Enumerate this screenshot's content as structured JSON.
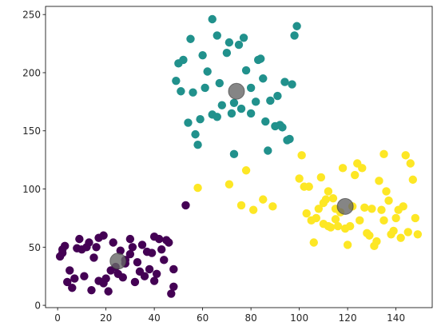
{
  "chart_data": {
    "type": "scatter",
    "title": "",
    "xlabel": "",
    "ylabel": "",
    "xlim": [
      -5,
      155
    ],
    "ylim": [
      -2,
      257
    ],
    "grid": false,
    "x_ticks": [
      0,
      20,
      40,
      60,
      80,
      100,
      120,
      140
    ],
    "y_ticks": [
      0,
      50,
      100,
      150,
      200,
      250
    ],
    "x_tick_labels": [
      "0",
      "20",
      "40",
      "60",
      "80",
      "100",
      "120",
      "140"
    ],
    "y_tick_labels": [
      "0",
      "50",
      "100",
      "150",
      "200",
      "250"
    ],
    "colors": {
      "cluster_purple": "#440154",
      "cluster_teal": "#21918c",
      "cluster_yellow": "#fde725",
      "centroid": "#666666",
      "axis": "#000000"
    },
    "series": [
      {
        "color": "#440154",
        "points": [
          [
            1,
            42
          ],
          [
            2,
            45
          ],
          [
            3,
            51
          ],
          [
            2,
            48
          ],
          [
            4,
            20
          ],
          [
            5,
            30
          ],
          [
            6,
            15
          ],
          [
            7,
            23
          ],
          [
            8,
            49
          ],
          [
            9,
            57
          ],
          [
            10,
            48
          ],
          [
            11,
            25
          ],
          [
            12,
            50
          ],
          [
            13,
            54
          ],
          [
            14,
            13
          ],
          [
            15,
            41
          ],
          [
            16,
            50
          ],
          [
            17,
            58
          ],
          [
            17,
            21
          ],
          [
            19,
            60
          ],
          [
            19,
            19
          ],
          [
            20,
            23
          ],
          [
            21,
            12
          ],
          [
            22,
            30
          ],
          [
            23,
            54
          ],
          [
            24,
            33
          ],
          [
            25,
            27
          ],
          [
            26,
            47
          ],
          [
            27,
            24
          ],
          [
            28,
            36
          ],
          [
            28,
            39
          ],
          [
            30,
            57
          ],
          [
            30,
            44
          ],
          [
            31,
            50
          ],
          [
            32,
            20
          ],
          [
            33,
            37
          ],
          [
            34,
            29
          ],
          [
            35,
            52
          ],
          [
            36,
            25
          ],
          [
            37,
            46
          ],
          [
            38,
            31
          ],
          [
            39,
            45
          ],
          [
            40,
            59
          ],
          [
            40,
            21
          ],
          [
            41,
            27
          ],
          [
            42,
            57
          ],
          [
            43,
            48
          ],
          [
            44,
            39
          ],
          [
            45,
            56
          ],
          [
            46,
            54
          ],
          [
            47,
            10
          ],
          [
            48,
            31
          ],
          [
            48,
            16
          ],
          [
            53,
            86
          ]
        ]
      },
      {
        "color": "#21918c",
        "points": [
          [
            49,
            193
          ],
          [
            50,
            208
          ],
          [
            51,
            184
          ],
          [
            52,
            211
          ],
          [
            54,
            157
          ],
          [
            55,
            229
          ],
          [
            56,
            183
          ],
          [
            57,
            147
          ],
          [
            58,
            138
          ],
          [
            59,
            160
          ],
          [
            60,
            215
          ],
          [
            61,
            187
          ],
          [
            62,
            201
          ],
          [
            64,
            246
          ],
          [
            64,
            164
          ],
          [
            66,
            232
          ],
          [
            66,
            162
          ],
          [
            67,
            191
          ],
          [
            68,
            172
          ],
          [
            70,
            217
          ],
          [
            71,
            226
          ],
          [
            72,
            165
          ],
          [
            73,
            130
          ],
          [
            73,
            174
          ],
          [
            75,
            224
          ],
          [
            76,
            169
          ],
          [
            77,
            230
          ],
          [
            78,
            202
          ],
          [
            80,
            165
          ],
          [
            80,
            187
          ],
          [
            82,
            175
          ],
          [
            83,
            211
          ],
          [
            84,
            212
          ],
          [
            85,
            195
          ],
          [
            86,
            158
          ],
          [
            87,
            133
          ],
          [
            88,
            176
          ],
          [
            90,
            154
          ],
          [
            91,
            180
          ],
          [
            92,
            155
          ],
          [
            93,
            153
          ],
          [
            94,
            192
          ],
          [
            95,
            142
          ],
          [
            96,
            143
          ],
          [
            97,
            190
          ],
          [
            98,
            232
          ],
          [
            99,
            240
          ]
        ]
      },
      {
        "color": "#fde725",
        "points": [
          [
            58,
            101
          ],
          [
            71,
            104
          ],
          [
            76,
            86
          ],
          [
            78,
            116
          ],
          [
            81,
            82
          ],
          [
            85,
            91
          ],
          [
            89,
            85
          ],
          [
            100,
            109
          ],
          [
            101,
            129
          ],
          [
            102,
            102
          ],
          [
            103,
            79
          ],
          [
            104,
            102
          ],
          [
            105,
            73
          ],
          [
            106,
            54
          ],
          [
            107,
            75
          ],
          [
            108,
            83
          ],
          [
            109,
            110
          ],
          [
            110,
            70
          ],
          [
            110,
            88
          ],
          [
            111,
            91
          ],
          [
            112,
            68
          ],
          [
            112,
            98
          ],
          [
            113,
            67
          ],
          [
            114,
            92
          ],
          [
            115,
            74
          ],
          [
            115,
            83
          ],
          [
            116,
            68
          ],
          [
            117,
            80
          ],
          [
            118,
            118
          ],
          [
            119,
            66
          ],
          [
            120,
            52
          ],
          [
            121,
            68
          ],
          [
            122,
            85
          ],
          [
            123,
            112
          ],
          [
            124,
            122
          ],
          [
            125,
            73
          ],
          [
            126,
            118
          ],
          [
            127,
            84
          ],
          [
            128,
            62
          ],
          [
            129,
            60
          ],
          [
            130,
            83
          ],
          [
            131,
            51
          ],
          [
            132,
            55
          ],
          [
            133,
            107
          ],
          [
            134,
            82
          ],
          [
            135,
            73
          ],
          [
            135,
            130
          ],
          [
            136,
            98
          ],
          [
            137,
            90
          ],
          [
            138,
            61
          ],
          [
            139,
            64
          ],
          [
            140,
            75
          ],
          [
            141,
            82
          ],
          [
            142,
            58
          ],
          [
            143,
            85
          ],
          [
            144,
            129
          ],
          [
            145,
            63
          ],
          [
            146,
            122
          ],
          [
            147,
            108
          ],
          [
            148,
            75
          ],
          [
            149,
            61
          ]
        ]
      }
    ],
    "centroids": {
      "color": "#666666",
      "points": [
        [
          25,
          38
        ],
        [
          74,
          184
        ],
        [
          119,
          85
        ]
      ]
    }
  }
}
